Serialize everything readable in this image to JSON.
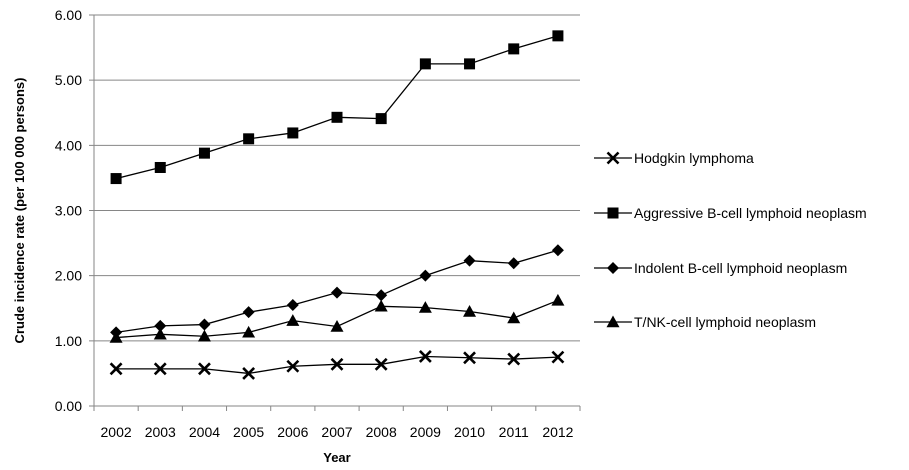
{
  "chart_data": {
    "type": "line",
    "title": "",
    "xlabel": "Year",
    "ylabel": "Crude incidence rate (per 100 000 persons)",
    "x": [
      "2002",
      "2003",
      "2004",
      "2005",
      "2006",
      "2007",
      "2008",
      "2009",
      "2010",
      "2011",
      "2012"
    ],
    "y_ticks": [
      "0.00",
      "1.00",
      "2.00",
      "3.00",
      "4.00",
      "5.00",
      "6.00"
    ],
    "ylim": [
      0,
      6
    ],
    "grid": "horizontal",
    "legend_position": "right",
    "series": [
      {
        "name": "Hodgkin lymphoma",
        "marker": "x",
        "color": "#000000",
        "values": [
          0.57,
          0.57,
          0.57,
          0.5,
          0.61,
          0.64,
          0.64,
          0.76,
          0.74,
          0.72,
          0.75
        ]
      },
      {
        "name": "Aggressive B-cell lymphoid neoplasm",
        "marker": "square",
        "color": "#000000",
        "values": [
          3.49,
          3.66,
          3.88,
          4.1,
          4.19,
          4.43,
          4.41,
          5.25,
          5.25,
          5.48,
          5.68
        ]
      },
      {
        "name": "Indolent B-cell lymphoid neoplasm",
        "marker": "diamond",
        "color": "#000000",
        "values": [
          1.13,
          1.23,
          1.25,
          1.44,
          1.55,
          1.74,
          1.7,
          2.0,
          2.23,
          2.19,
          2.39
        ]
      },
      {
        "name": "T/NK-cell lymphoid neoplasm",
        "marker": "triangle",
        "color": "#000000",
        "values": [
          1.05,
          1.1,
          1.07,
          1.13,
          1.31,
          1.22,
          1.53,
          1.51,
          1.45,
          1.35,
          1.62
        ]
      }
    ]
  }
}
